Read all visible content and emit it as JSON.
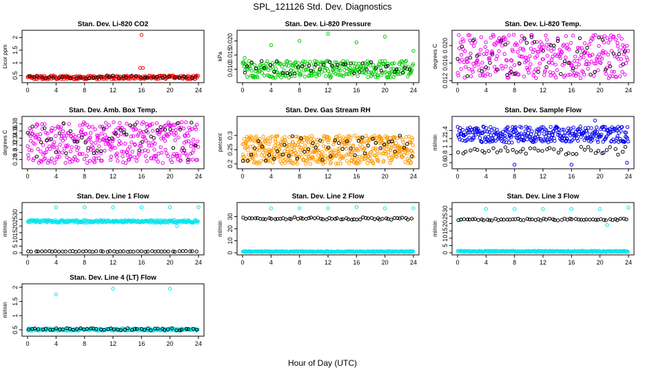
{
  "figure": {
    "title": "SPL_121126  Std. Dev. Diagnostics",
    "xlabel": "Hour of Day (UTC)"
  },
  "chart_data": [
    {
      "type": "scatter",
      "title": "Stan. Dev. Li-820 CO2",
      "ylabel": "Licor ppm",
      "xlim": [
        0,
        24
      ],
      "ylim": [
        0.3,
        2.2
      ],
      "xticks": [
        0,
        4,
        8,
        12,
        16,
        20,
        24
      ],
      "yticks": [
        0.5,
        1.0,
        1.5,
        2.0
      ],
      "grid": false,
      "series": [
        {
          "color": "#ff0000",
          "marker": "circle",
          "count": 240,
          "x_range": [
            0,
            24
          ],
          "y_range": [
            0.35,
            0.5
          ],
          "outliers": [
            [
              16.0,
              2.1
            ],
            [
              15.8,
              0.8
            ],
            [
              16.2,
              0.8
            ]
          ]
        },
        {
          "color": "#000000",
          "marker": "circle",
          "count": 40,
          "x_range": [
            0,
            24
          ],
          "y_range": [
            0.38,
            0.5
          ]
        }
      ]
    },
    {
      "type": "scatter",
      "title": "Stan. Dev. Li-820 Pressure",
      "ylabel": "kPa",
      "xlim": [
        0,
        24
      ],
      "ylim": [
        0.006,
        0.023
      ],
      "xticks": [
        0,
        4,
        8,
        12,
        16,
        20,
        24
      ],
      "yticks": [
        0.01,
        0.015,
        0.02
      ],
      "grid": false,
      "series": [
        {
          "color": "#00cc00",
          "marker": "circle",
          "count": 300,
          "x_range": [
            0,
            24
          ],
          "y_range": [
            0.007,
            0.013
          ],
          "outliers": [
            [
              4,
              0.0185
            ],
            [
              8,
              0.02
            ],
            [
              12,
              0.0225
            ],
            [
              16,
              0.0195
            ],
            [
              20,
              0.0215
            ],
            [
              24,
              0.0165
            ],
            [
              0.3,
              0.014
            ]
          ]
        },
        {
          "color": "#000000",
          "marker": "circle",
          "count": 40,
          "x_range": [
            0,
            24
          ],
          "y_range": [
            0.008,
            0.013
          ]
        }
      ]
    },
    {
      "type": "scatter",
      "title": "Stan. Dev. Li-820 Temp.",
      "ylabel": "degrees C",
      "xlim": [
        0,
        24
      ],
      "ylim": [
        0.012,
        0.023
      ],
      "xticks": [
        0,
        4,
        8,
        12,
        16,
        20,
        24
      ],
      "yticks": [
        0.012,
        0.016,
        0.02
      ],
      "grid": false,
      "series": [
        {
          "color": "#ee00ee",
          "marker": "circle",
          "count": 320,
          "x_range": [
            0,
            24
          ],
          "y_range": [
            0.0125,
            0.0225
          ]
        },
        {
          "color": "#000000",
          "marker": "circle",
          "count": 45,
          "x_range": [
            0,
            24
          ],
          "y_range": [
            0.013,
            0.022
          ]
        }
      ]
    },
    {
      "type": "scatter",
      "title": "Stan. Dev. Amb. Box Temp.",
      "ylabel": "degrees C",
      "xlim": [
        0,
        24
      ],
      "ylim": [
        0.26,
        0.395
      ],
      "xticks": [
        0,
        4,
        8,
        12,
        16,
        20,
        24
      ],
      "yticks": [
        0.28,
        0.3,
        0.32,
        0.34,
        0.36,
        0.38
      ],
      "grid": false,
      "series": [
        {
          "color": "#ee00ee",
          "marker": "circle",
          "count": 380,
          "x_range": [
            0,
            24
          ],
          "y_range": [
            0.27,
            0.385
          ]
        },
        {
          "color": "#000000",
          "marker": "circle",
          "count": 45,
          "x_range": [
            0,
            24
          ],
          "y_range": [
            0.275,
            0.385
          ]
        }
      ]
    },
    {
      "type": "scatter",
      "title": "Stan. Dev. Gas Stream RH",
      "ylabel": "percent",
      "xlim": [
        0,
        24
      ],
      "ylim": [
        0.19,
        0.36
      ],
      "xticks": [
        0,
        4,
        8,
        12,
        16,
        20,
        24
      ],
      "yticks": [
        0.2,
        0.25,
        0.3
      ],
      "grid": false,
      "series": [
        {
          "color": "#ff9900",
          "marker": "circle",
          "count": 520,
          "x_range": [
            0,
            24
          ],
          "y_range": [
            0.2,
            0.3
          ]
        },
        {
          "color": "#000000",
          "marker": "circle",
          "count": 45,
          "x_range": [
            0,
            24
          ],
          "y_range": [
            0.21,
            0.3
          ]
        }
      ]
    },
    {
      "type": "scatter",
      "title": "Stan. Dev. Sample Flow",
      "ylabel": "ml/min",
      "xlim": [
        0,
        24
      ],
      "ylim": [
        0.5,
        1.7
      ],
      "xticks": [
        0,
        4,
        8,
        12,
        16,
        20,
        24
      ],
      "yticks": [
        0.6,
        0.8,
        1.0,
        1.2,
        1.4
      ],
      "grid": false,
      "series": [
        {
          "color": "#0000ee",
          "marker": "circle",
          "count": 340,
          "x_range": [
            0,
            24
          ],
          "y_range": [
            1.1,
            1.5
          ],
          "outliers": [
            [
              8,
              0.55
            ],
            [
              16,
              0.55
            ],
            [
              23.8,
              0.6
            ],
            [
              19.3,
              1.65
            ],
            [
              20.5,
              0.85
            ]
          ]
        },
        {
          "color": "#000000",
          "marker": "circle",
          "count": 45,
          "x_range": [
            0,
            24
          ],
          "y_range": [
            0.8,
            1.0
          ]
        }
      ]
    },
    {
      "type": "scatter",
      "title": "Stan. Dev. Line 1 Flow",
      "ylabel": "ml/min",
      "xlim": [
        0,
        24
      ],
      "ylim": [
        0,
        36
      ],
      "xticks": [
        0,
        4,
        8,
        12,
        16,
        20,
        24
      ],
      "yticks": [
        0,
        5,
        10,
        15,
        20,
        25,
        30
      ],
      "grid": false,
      "series": [
        {
          "color": "#00e5ee",
          "marker": "circle",
          "count": 260,
          "x_range": [
            0,
            24
          ],
          "y_range": [
            22.5,
            24.5
          ],
          "outliers": [
            [
              4,
              34
            ],
            [
              8,
              34
            ],
            [
              12,
              34
            ],
            [
              16,
              34
            ],
            [
              20,
              34
            ],
            [
              24,
              34
            ],
            [
              21,
              20
            ]
          ]
        },
        {
          "color": "#000000",
          "marker": "circle",
          "count": 50,
          "x_range": [
            0,
            24
          ],
          "y_range": [
            0.8,
            1.3
          ]
        }
      ]
    },
    {
      "type": "scatter",
      "title": "Stan. Dev. Line 2 Flow",
      "ylabel": "ml/min",
      "xlim": [
        0,
        24
      ],
      "ylim": [
        0,
        40
      ],
      "xticks": [
        0,
        4,
        8,
        12,
        16,
        20,
        24
      ],
      "yticks": [
        0,
        10,
        20,
        30
      ],
      "grid": false,
      "series": [
        {
          "color": "#00e5ee",
          "marker": "circle",
          "count": 260,
          "x_range": [
            0,
            24
          ],
          "y_range": [
            0.6,
            1.4
          ],
          "outliers": [
            [
              4,
              37
            ],
            [
              8,
              37
            ],
            [
              12,
              37
            ],
            [
              16,
              38
            ],
            [
              20,
              37
            ],
            [
              24,
              37
            ]
          ]
        },
        {
          "color": "#000000",
          "marker": "circle",
          "count": 60,
          "x_range": [
            0,
            24
          ],
          "y_range": [
            27.5,
            29.5
          ]
        }
      ]
    },
    {
      "type": "scatter",
      "title": "Stan. Dev. Line 3 Flow",
      "ylabel": "ml/min",
      "xlim": [
        0,
        24
      ],
      "ylim": [
        0,
        33
      ],
      "xticks": [
        0,
        4,
        8,
        12,
        16,
        20,
        24
      ],
      "yticks": [
        0,
        5,
        10,
        15,
        20,
        25,
        30
      ],
      "grid": false,
      "series": [
        {
          "color": "#00e5ee",
          "marker": "circle",
          "count": 260,
          "x_range": [
            0,
            24
          ],
          "y_range": [
            0.6,
            1.4
          ],
          "outliers": [
            [
              4,
              30
            ],
            [
              8,
              30
            ],
            [
              12,
              30
            ],
            [
              16,
              30
            ],
            [
              20,
              30
            ],
            [
              24,
              31
            ],
            [
              21,
              19
            ],
            [
              0.4,
              22.5
            ]
          ]
        },
        {
          "color": "#000000",
          "marker": "circle",
          "count": 60,
          "x_range": [
            0,
            24
          ],
          "y_range": [
            22.2,
            23.4
          ]
        }
      ]
    },
    {
      "type": "scatter",
      "title": "Stan. Dev. Line 4 (LT) Flow",
      "ylabel": "ml/min",
      "xlim": [
        0,
        24
      ],
      "ylim": [
        0.35,
        2.05
      ],
      "xticks": [
        0,
        4,
        8,
        12,
        16,
        20,
        24
      ],
      "yticks": [
        0.5,
        1.0,
        1.5,
        2.0
      ],
      "grid": false,
      "series": [
        {
          "color": "#00e5ee",
          "marker": "circle",
          "count": 260,
          "x_range": [
            0,
            24
          ],
          "y_range": [
            0.47,
            0.55
          ],
          "outliers": [
            [
              4,
              1.75
            ],
            [
              12,
              1.95
            ],
            [
              20,
              1.95
            ]
          ]
        },
        {
          "color": "#000000",
          "marker": "circle",
          "count": 50,
          "x_range": [
            0,
            24
          ],
          "y_range": [
            0.48,
            0.56
          ]
        }
      ]
    }
  ]
}
